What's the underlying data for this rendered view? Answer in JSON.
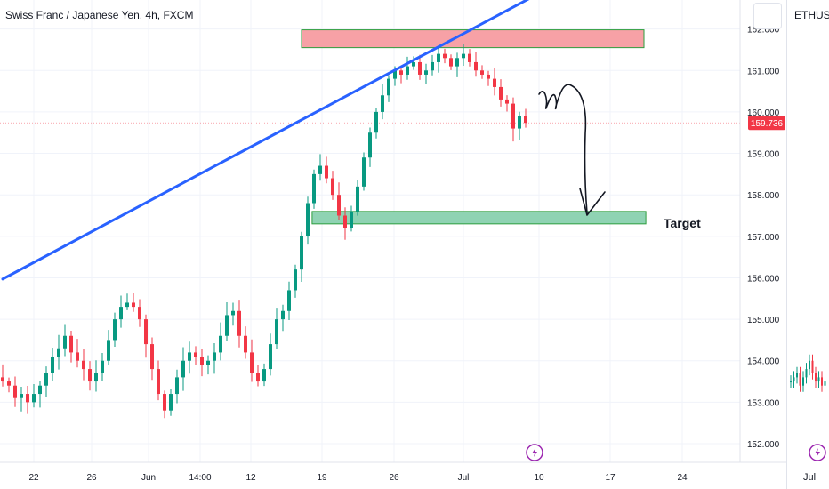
{
  "chart_data": {
    "type": "candlestick",
    "title": "Swiss Franc / Japanese Yen, 4h, FXCM",
    "ylim": [
      151.55,
      162.7
    ],
    "yticks": [
      152,
      153,
      154,
      155,
      156,
      157,
      158,
      159,
      160,
      161,
      162
    ],
    "ytick_labels": [
      "152.000",
      "153.000",
      "154.000",
      "155.000",
      "156.000",
      "157.000",
      "158.000",
      "159.000",
      "160.000",
      "161.000",
      "162.000"
    ],
    "x_tick_labels": [
      "22",
      "26",
      "Jun",
      "14:00",
      "12",
      "19",
      "26",
      "Jul",
      "10",
      "17",
      "24"
    ],
    "current_price": 159.736,
    "current_price_label": "159.736",
    "trendline": {
      "start": [
        0,
        155.97
      ],
      "end": [
        85.4,
        162.8
      ]
    },
    "sell_zone": {
      "x": [
        48.0,
        103.0
      ],
      "y": [
        161.55,
        161.98
      ]
    },
    "target_zone": {
      "x": [
        49.7,
        103.3
      ],
      "y": [
        157.3,
        157.6
      ]
    },
    "annotation_label": "Target",
    "candles_shown": 85,
    "candle_closes": [
      153.5,
      153.4,
      153.1,
      153.2,
      153.0,
      153.2,
      153.4,
      153.7,
      154.1,
      154.3,
      154.6,
      154.2,
      154.0,
      153.8,
      153.5,
      153.7,
      154.0,
      154.5,
      155.0,
      155.3,
      155.4,
      155.3,
      155.0,
      154.4,
      153.8,
      153.2,
      152.8,
      153.2,
      153.6,
      154.0,
      154.2,
      154.1,
      153.9,
      154.0,
      154.2,
      154.6,
      155.1,
      155.2,
      154.6,
      154.2,
      153.7,
      153.5,
      153.8,
      154.4,
      155.0,
      155.2,
      155.7,
      156.2,
      157.0,
      157.8,
      158.5,
      158.7,
      158.4,
      158.0,
      157.5,
      157.2,
      157.6,
      158.2,
      158.9,
      159.5,
      160.0,
      160.4,
      160.8,
      161.0,
      160.9,
      161.1,
      161.2,
      160.9,
      161.0,
      161.2,
      161.4,
      161.3,
      161.1,
      161.3,
      161.4,
      161.2,
      161.0,
      160.9,
      160.8,
      160.6,
      160.3,
      160.2,
      159.6,
      159.9,
      159.736
    ],
    "ethusdt_panel": {
      "symbol": "ETHUSDT,",
      "x_tick_label": "Jul",
      "ylim": [
        151.55,
        162.7
      ],
      "candle_closes": [
        153.5,
        153.6,
        153.7,
        153.4,
        153.6,
        153.8,
        154.0,
        153.7,
        153.5,
        153.6,
        153.4,
        153.5
      ]
    }
  }
}
